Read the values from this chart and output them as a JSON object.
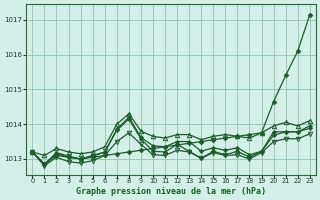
{
  "background_color": "#d4eee8",
  "grid_color": "#90c4b0",
  "line_color": "#1a5c2a",
  "title": "Graphe pression niveau de la mer (hPa)",
  "ylim": [
    1012.55,
    1017.45
  ],
  "xlim": [
    -0.5,
    23.5
  ],
  "yticks": [
    1013,
    1014,
    1015,
    1016,
    1017
  ],
  "xticks": [
    0,
    1,
    2,
    3,
    4,
    5,
    6,
    7,
    8,
    9,
    10,
    11,
    12,
    13,
    14,
    15,
    16,
    17,
    18,
    19,
    20,
    21,
    22,
    23
  ],
  "line1_rising": [
    1013.2,
    1012.85,
    1013.1,
    1013.05,
    1013.0,
    1013.05,
    1013.1,
    1013.15,
    1013.2,
    1013.25,
    1013.3,
    1013.35,
    1013.4,
    1013.45,
    1013.5,
    1013.55,
    1013.6,
    1013.65,
    1013.7,
    1013.75,
    1014.65,
    1015.4,
    1016.1,
    1017.15
  ],
  "line2_upper_env": [
    1013.2,
    1013.1,
    1013.3,
    1013.2,
    1013.15,
    1013.2,
    1013.35,
    1014.0,
    1014.3,
    1013.8,
    1013.65,
    1013.6,
    1013.7,
    1013.7,
    1013.55,
    1013.65,
    1013.7,
    1013.65,
    1013.6,
    1013.75,
    1013.95,
    1014.05,
    1013.95,
    1014.1
  ],
  "line3_lower_env": [
    1013.2,
    1012.8,
    1013.05,
    1012.92,
    1012.88,
    1012.95,
    1013.1,
    1013.5,
    1013.75,
    1013.42,
    1013.12,
    1013.1,
    1013.25,
    1013.2,
    1013.02,
    1013.18,
    1013.1,
    1013.12,
    1013.0,
    1013.18,
    1013.5,
    1013.58,
    1013.58,
    1013.72
  ],
  "line4_mid1": [
    1013.2,
    1012.85,
    1013.15,
    1013.05,
    1013.0,
    1013.08,
    1013.2,
    1013.85,
    1014.2,
    1013.62,
    1013.38,
    1013.35,
    1013.5,
    1013.5,
    1013.22,
    1013.32,
    1013.25,
    1013.32,
    1013.12,
    1013.22,
    1013.78,
    1013.78,
    1013.78,
    1013.88
  ],
  "line5_mid2": [
    1013.2,
    1012.85,
    1013.18,
    1013.08,
    1013.0,
    1013.1,
    1013.2,
    1013.82,
    1014.15,
    1013.58,
    1013.22,
    1013.2,
    1013.42,
    1013.22,
    1013.02,
    1013.22,
    1013.12,
    1013.22,
    1013.05,
    1013.22,
    1013.68,
    1013.78,
    1013.78,
    1013.95
  ]
}
